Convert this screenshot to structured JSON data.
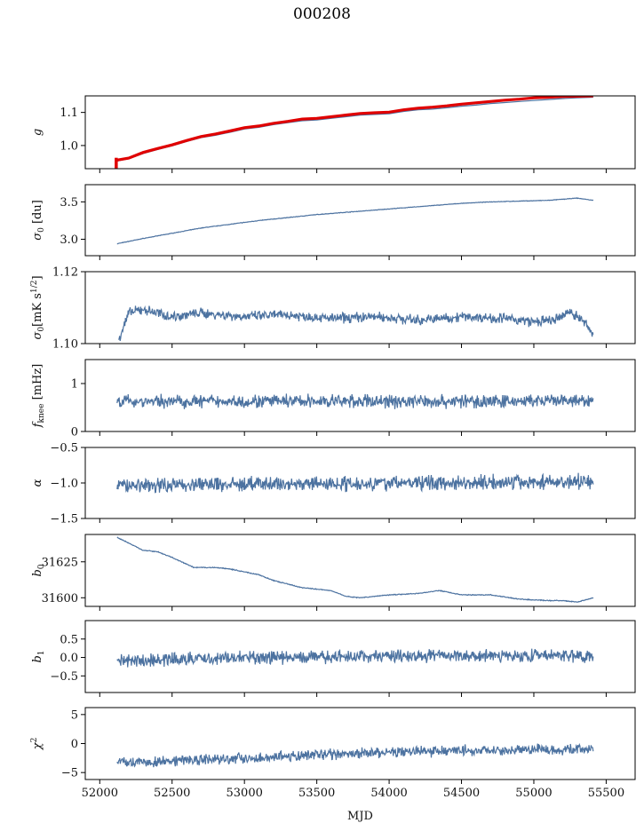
{
  "figure": {
    "title": "000208",
    "xlabel": "MJD"
  },
  "colors": {
    "series": "#4c72a0",
    "fit": "#e00000"
  },
  "chart_data": [
    {
      "type": "line",
      "ylabel": "g",
      "xlim": [
        51900,
        55700
      ],
      "ylim": [
        0.93,
        1.15
      ],
      "yticks": [
        1.0,
        1.1
      ],
      "x": [
        52120,
        52200,
        52300,
        52400,
        52500,
        52600,
        52700,
        52800,
        52900,
        53000,
        53100,
        53200,
        53300,
        53400,
        53500,
        53600,
        53700,
        53800,
        53900,
        54000,
        54100,
        54200,
        54300,
        54400,
        54500,
        54600,
        54700,
        54800,
        54900,
        55000,
        55100,
        55200,
        55300,
        55410
      ],
      "series": [
        {
          "values": [
            0.953,
            0.96,
            0.976,
            0.988,
            0.999,
            1.012,
            1.024,
            1.031,
            1.04,
            1.05,
            1.055,
            1.063,
            1.069,
            1.075,
            1.077,
            1.082,
            1.087,
            1.092,
            1.094,
            1.096,
            1.103,
            1.108,
            1.11,
            1.114,
            1.119,
            1.122,
            1.127,
            1.13,
            1.133,
            1.136,
            1.139,
            1.142,
            1.144,
            1.146
          ],
          "color": "#4c72a0"
        },
        {
          "values": [
            0.956,
            0.962,
            0.979,
            0.991,
            1.002,
            1.015,
            1.027,
            1.035,
            1.044,
            1.054,
            1.059,
            1.067,
            1.073,
            1.08,
            1.082,
            1.087,
            1.092,
            1.097,
            1.099,
            1.101,
            1.108,
            1.113,
            1.116,
            1.12,
            1.125,
            1.129,
            1.133,
            1.137,
            1.14,
            1.144,
            1.146,
            1.148,
            1.149,
            1.15
          ],
          "color": "#e00000"
        }
      ]
    },
    {
      "type": "line",
      "ylabel": "σ0 [du]",
      "xlim": [
        51900,
        55700
      ],
      "ylim": [
        2.78,
        3.73
      ],
      "yticks": [
        3.0,
        3.5
      ],
      "x": [
        52120,
        52300,
        52500,
        52700,
        52900,
        53100,
        53300,
        53500,
        53700,
        53900,
        54100,
        54300,
        54500,
        54700,
        54900,
        55100,
        55300,
        55410
      ],
      "series": [
        {
          "values": [
            2.94,
            3.01,
            3.08,
            3.15,
            3.2,
            3.25,
            3.29,
            3.33,
            3.36,
            3.39,
            3.42,
            3.45,
            3.48,
            3.5,
            3.51,
            3.52,
            3.55,
            3.52
          ],
          "color": "#4c72a0",
          "noise": 0.003
        }
      ]
    },
    {
      "type": "line",
      "ylabel": "σ0[mK s^1/2]",
      "xlim": [
        51900,
        55700
      ],
      "ylim": [
        1.1,
        1.12
      ],
      "yticks": [
        1.1,
        1.12
      ],
      "x": [
        52130,
        52200,
        52300,
        52500,
        52700,
        53000,
        53300,
        53600,
        53900,
        54200,
        54500,
        54800,
        55000,
        55150,
        55250,
        55350,
        55410
      ],
      "series": [
        {
          "values": [
            1.101,
            1.1085,
            1.1095,
            1.1075,
            1.1085,
            1.1075,
            1.108,
            1.107,
            1.1075,
            1.1065,
            1.1075,
            1.107,
            1.106,
            1.1065,
            1.109,
            1.106,
            1.1025
          ],
          "color": "#4c72a0",
          "noise": 0.0012
        }
      ]
    },
    {
      "type": "line",
      "ylabel": "f_knee [mHz]",
      "xlim": [
        51900,
        55700
      ],
      "ylim": [
        0,
        1.5
      ],
      "yticks": [
        0,
        1
      ],
      "x": [
        52120,
        55410
      ],
      "series": [
        {
          "values": [
            0.63,
            0.63
          ],
          "color": "#4c72a0",
          "noise": 0.12
        }
      ]
    },
    {
      "type": "line",
      "ylabel": "α",
      "xlim": [
        51900,
        55700
      ],
      "ylim": [
        -1.5,
        -0.5
      ],
      "yticks": [
        -1.5,
        -1.0,
        -0.5
      ],
      "x": [
        52120,
        55410
      ],
      "series": [
        {
          "values": [
            -1.03,
            -0.98
          ],
          "color": "#4c72a0",
          "noise": 0.09
        }
      ]
    },
    {
      "type": "line",
      "ylabel": "b0",
      "xlim": [
        51900,
        55700
      ],
      "ylim": [
        31594,
        31644
      ],
      "yticks": [
        31600,
        31625
      ],
      "x": [
        52120,
        52200,
        52300,
        52400,
        52500,
        52650,
        52800,
        52900,
        53000,
        53100,
        53200,
        53400,
        53600,
        53700,
        53800,
        54000,
        54200,
        54350,
        54500,
        54700,
        54900,
        55100,
        55200,
        55300,
        55410
      ],
      "series": [
        {
          "values": [
            31642,
            31638,
            31633,
            31632,
            31628,
            31621,
            31621,
            31620,
            31618,
            31616,
            31612,
            31607,
            31605,
            31601,
            31600,
            31602,
            31603,
            31605,
            31602,
            31602,
            31599,
            31598,
            31598,
            31597,
            31600
          ],
          "color": "#4c72a0",
          "noise": 0.25
        }
      ]
    },
    {
      "type": "line",
      "ylabel": "b1",
      "xlim": [
        51900,
        55700
      ],
      "ylim": [
        -0.95,
        1.0
      ],
      "yticks": [
        -0.5,
        0.0,
        0.5
      ],
      "x": [
        52120,
        52200,
        52500,
        53000,
        53500,
        54000,
        54500,
        55000,
        55410
      ],
      "series": [
        {
          "values": [
            -0.1,
            -0.1,
            -0.05,
            0.0,
            0.0,
            0.05,
            0.05,
            0.05,
            0.05
          ],
          "color": "#4c72a0",
          "noise": 0.15
        }
      ]
    },
    {
      "type": "line",
      "ylabel": "χ²",
      "xlim": [
        51900,
        55700
      ],
      "ylim": [
        -6.2,
        6.2
      ],
      "yticks": [
        -5,
        0,
        5
      ],
      "xticks": [
        52000,
        52500,
        53000,
        53500,
        54000,
        54500,
        55000,
        55500
      ],
      "x": [
        52120,
        52300,
        52600,
        53000,
        53500,
        54000,
        54500,
        55000,
        55410
      ],
      "series": [
        {
          "values": [
            -3.0,
            -3.2,
            -2.8,
            -2.5,
            -2.0,
            -1.5,
            -1.2,
            -1.0,
            -1.0
          ],
          "color": "#4c72a0",
          "noise": 0.8
        }
      ]
    }
  ]
}
